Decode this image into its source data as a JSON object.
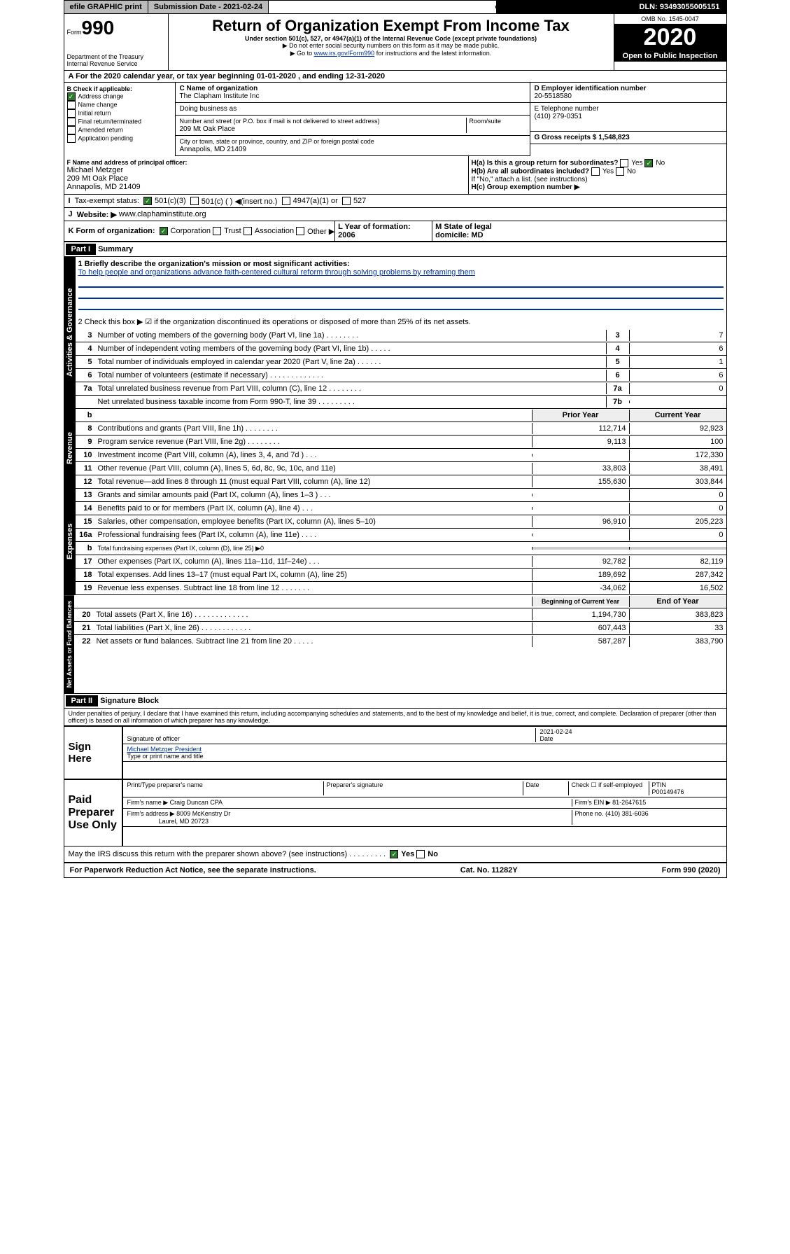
{
  "topbar": {
    "efile": "efile GRAPHIC print",
    "submission": "Submission Date - 2021-02-24",
    "dln": "DLN: 93493055005151"
  },
  "header": {
    "form": "Form",
    "form_num": "990",
    "dept": "Department of the Treasury\nInternal Revenue Service",
    "title": "Return of Organization Exempt From Income Tax",
    "subtitle": "Under section 501(c), 527, or 4947(a)(1) of the Internal Revenue Code (except private foundations)",
    "note1": "▶ Do not enter social security numbers on this form as it may be made public.",
    "note2_pre": "▶ Go to ",
    "note2_link": "www.irs.gov/Form990",
    "note2_post": " for instructions and the latest information.",
    "omb": "OMB No. 1545-0047",
    "year": "2020",
    "otp": "Open to Public Inspection"
  },
  "section_a": "A For the 2020 calendar year, or tax year beginning 01-01-2020  , and ending 12-31-2020",
  "box_b": {
    "label": "B Check if applicable:",
    "items": [
      {
        "txt": "Address change",
        "on": true
      },
      {
        "txt": "Name change",
        "on": false
      },
      {
        "txt": "Initial return",
        "on": false
      },
      {
        "txt": "Final return/terminated",
        "on": false
      },
      {
        "txt": "Amended return",
        "on": false
      },
      {
        "txt": "Application pending",
        "on": false
      }
    ]
  },
  "box_c": {
    "name_label": "C Name of organization",
    "name": "The Clapham Institute Inc",
    "dba_label": "Doing business as",
    "addr_label": "Number and street (or P.O. box if mail is not delivered to street address)",
    "room_label": "Room/suite",
    "addr": "209 Mt Oak Place",
    "city_label": "City or town, state or province, country, and ZIP or foreign postal code",
    "city": "Annapolis, MD  21409"
  },
  "box_d": {
    "label": "D Employer identification number",
    "val": "20-5518580"
  },
  "box_e": {
    "label": "E Telephone number",
    "val": "(410) 279-0351"
  },
  "box_g": {
    "label": "G Gross receipts $ 1,548,823"
  },
  "box_f": {
    "label": "F  Name and address of principal officer:",
    "name": "Michael Metzger",
    "addr1": "209 Mt Oak Place",
    "addr2": "Annapolis, MD  21409"
  },
  "box_h": {
    "ha": "H(a)  Is this a group return for subordinates?",
    "hb": "H(b)  Are all subordinates included?",
    "hb_note": "If \"No,\" attach a list. (see instructions)",
    "hc": "H(c)  Group exemption number ▶",
    "yes": "Yes",
    "no": "No"
  },
  "row_i": {
    "label": "I",
    "txt": "Tax-exempt status:",
    "opts": [
      "501(c)(3)",
      "501(c) (   ) ◀(insert no.)",
      "4947(a)(1) or",
      "527"
    ]
  },
  "row_j": {
    "label": "J",
    "txt": "Website: ▶",
    "val": "www.claphaminstitute.org"
  },
  "row_k": {
    "label": "K Form of organization:",
    "opts": [
      "Corporation",
      "Trust",
      "Association",
      "Other ▶"
    ]
  },
  "row_l": {
    "label": "L Year of formation: 2006"
  },
  "row_m": {
    "label": "M State of legal domicile: MD"
  },
  "part1": {
    "hdr": "Part I",
    "title": "Summary"
  },
  "summary_data": {
    "activities": {
      "tab": "Activities & Governance",
      "q1_label": "1  Briefly describe the organization's mission or most significant activities:",
      "q1_val": "To help people and organizations advance faith-centered cultural reform through solving problems by reframing them",
      "q2": "2   Check this box ▶ ☑  if the organization discontinued its operations or disposed of more than 25% of its net assets.",
      "rows": [
        {
          "n": "3",
          "label": "Number of voting members of the governing body (Part VI, line 1a)  .   .   .   .   .   .   .   .",
          "box": "3",
          "v": "7"
        },
        {
          "n": "4",
          "label": "Number of independent voting members of the governing body (Part VI, line 1b)  .   .   .   .   .",
          "box": "4",
          "v": "6"
        },
        {
          "n": "5",
          "label": "Total number of individuals employed in calendar year 2020 (Part V, line 2a)  .   .   .   .   .   .",
          "box": "5",
          "v": "1"
        },
        {
          "n": "6",
          "label": "Total number of volunteers (estimate if necessary)  .   .   .   .   .   .   .   .   .   .   .   .   .",
          "box": "6",
          "v": "6"
        },
        {
          "n": "7a",
          "label": "Total unrelated business revenue from Part VIII, column (C), line 12  .   .   .   .   .   .   .   .",
          "box": "7a",
          "v": "0"
        },
        {
          "n": "",
          "label": "Net unrelated business taxable income from Form 990-T, line 39  .   .   .   .   .   .   .   .   .",
          "box": "7b",
          "v": ""
        }
      ]
    },
    "col_hdrs": {
      "prior": "Prior Year",
      "current": "Current Year"
    },
    "revenue": {
      "tab": "Revenue",
      "rows": [
        {
          "n": "8",
          "label": "Contributions and grants (Part VIII, line 1h)  .   .   .   .   .   .   .   .",
          "p": "112,714",
          "c": "92,923"
        },
        {
          "n": "9",
          "label": "Program service revenue (Part VIII, line 2g)  .   .   .   .   .   .   .   .",
          "p": "9,113",
          "c": "100"
        },
        {
          "n": "10",
          "label": "Investment income (Part VIII, column (A), lines 3, 4, and 7d )  .   .   .",
          "p": "",
          "c": "172,330"
        },
        {
          "n": "11",
          "label": "Other revenue (Part VIII, column (A), lines 5, 6d, 8c, 9c, 10c, and 11e)",
          "p": "33,803",
          "c": "38,491"
        },
        {
          "n": "12",
          "label": "Total revenue—add lines 8 through 11 (must equal Part VIII, column (A), line 12)",
          "p": "155,630",
          "c": "303,844"
        }
      ]
    },
    "expenses": {
      "tab": "Expenses",
      "rows": [
        {
          "n": "13",
          "label": "Grants and similar amounts paid (Part IX, column (A), lines 1–3 )  .   .   .",
          "p": "",
          "c": "0"
        },
        {
          "n": "14",
          "label": "Benefits paid to or for members (Part IX, column (A), line 4)   .   .   .",
          "p": "",
          "c": "0"
        },
        {
          "n": "15",
          "label": "Salaries, other compensation, employee benefits (Part IX, column (A), lines 5–10)",
          "p": "96,910",
          "c": "205,223"
        },
        {
          "n": "16a",
          "label": "Professional fundraising fees (Part IX, column (A), line 11e)  .   .   .   .",
          "p": "",
          "c": "0"
        },
        {
          "n": "b",
          "label": "Total fundraising expenses (Part IX, column (D), line 25) ▶0",
          "p": "",
          "c": "",
          "grey": true
        },
        {
          "n": "17",
          "label": "Other expenses (Part IX, column (A), lines 11a–11d, 11f–24e)  .   .   .",
          "p": "92,782",
          "c": "82,119"
        },
        {
          "n": "18",
          "label": "Total expenses. Add lines 13–17 (must equal Part IX, column (A), line 25)",
          "p": "189,692",
          "c": "287,342"
        },
        {
          "n": "19",
          "label": "Revenue less expenses. Subtract line 18 from line 12   .   .   .   .   .   .   .",
          "p": "-34,062",
          "c": "16,502"
        }
      ]
    },
    "netassets": {
      "tab": "Net Assets or Fund Balances",
      "hdr_p": "Beginning of Current Year",
      "hdr_c": "End of Year",
      "rows": [
        {
          "n": "20",
          "label": "Total assets (Part X, line 16)  .   .   .   .   .   .   .   .   .   .   .   .   .",
          "p": "1,194,730",
          "c": "383,823"
        },
        {
          "n": "21",
          "label": "Total liabilities (Part X, line 26)  .   .   .   .   .   .   .   .   .   .   .   .",
          "p": "607,443",
          "c": "33"
        },
        {
          "n": "22",
          "label": "Net assets or fund balances. Subtract line 21 from line 20  .   .   .   .   .",
          "p": "587,287",
          "c": "383,790"
        }
      ]
    }
  },
  "part2": {
    "hdr": "Part II",
    "title": "Signature Block"
  },
  "perjury": "Under penalties of perjury, I declare that I have examined this return, including accompanying schedules and statements, and to the best of my knowledge and belief, it is true, correct, and complete. Declaration of preparer (other than officer) is based on all information of which preparer has any knowledge.",
  "sign": {
    "label": "Sign Here",
    "date": "2021-02-24",
    "sig_label": "Signature of officer",
    "date_label": "Date",
    "name": "Michael Metzger  President",
    "name_label": "Type or print name and title"
  },
  "paid": {
    "label": "Paid Preparer Use Only",
    "prep_name_label": "Print/Type preparer's name",
    "prep_sig_label": "Preparer's signature",
    "date_label": "Date",
    "self_emp": "Check ☐ if self-employed",
    "ptin_label": "PTIN",
    "ptin": "P00149476",
    "firm_name_label": "Firm's name    ▶",
    "firm_name": "Craig Duncan CPA",
    "firm_ein_label": "Firm's EIN ▶",
    "firm_ein": "81-2647615",
    "firm_addr_label": "Firm's address ▶",
    "firm_addr": "8009 McKenstry Dr",
    "firm_city": "Laurel, MD  20723",
    "phone_label": "Phone no.",
    "phone": "(410) 381-6036"
  },
  "discuss": "May the IRS discuss this return with the preparer shown above? (see instructions)   .   .   .   .   .   .   .   .   .",
  "footer": {
    "pra": "For Paperwork Reduction Act Notice, see the separate instructions.",
    "cat": "Cat. No. 11282Y",
    "form": "Form 990 (2020)"
  }
}
